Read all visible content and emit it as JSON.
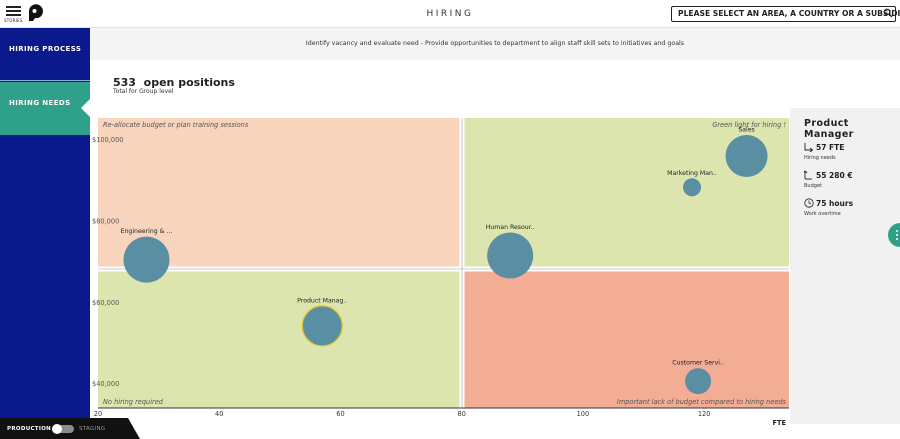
{
  "topbar": {
    "menu_label": "STORIES",
    "title": "HIRING",
    "search_placeholder": "PLEASE SELECT AN AREA, A COUNTRY OR A SUBSIDIARY",
    "icons": [
      "menu-icon",
      "logo-icon",
      "search-icon"
    ]
  },
  "sidebar": {
    "items": [
      {
        "label": "HIRING PROCESS",
        "active": false
      },
      {
        "label": "HIRING NEEDS",
        "active": true
      }
    ],
    "colors": {
      "bg": "#0a1a8c",
      "active": "#2fa089"
    }
  },
  "env": {
    "production_label": "PRODUCTION",
    "staging_label": "STAGING"
  },
  "description": "Identify vacancy and evaluate need - Provide opportunities to department to align staff skill sets to initiatives and goals",
  "summary": {
    "count": "533",
    "count_label": "open positions",
    "sublabel": "Total for Group level"
  },
  "chart_data": {
    "type": "scatter",
    "encoding": "bubble",
    "x_label": "FTE",
    "x_ticks": [
      "20",
      "40",
      "60",
      "80",
      "100",
      "120"
    ],
    "y_ticks": [
      "$100,000",
      "$80,000",
      "$60,000",
      "$40,000"
    ],
    "xlim": [
      20,
      134
    ],
    "ylim": [
      34000,
      107800
    ],
    "quadrants": [
      {
        "label": "Re-allocate budget or plan training sessions",
        "position": "top-left",
        "color": "#f9d4bd"
      },
      {
        "label": "Green light for hiring !",
        "position": "top-right",
        "color": "#dde5ae"
      },
      {
        "label": "No hiring required",
        "position": "bottom-left",
        "color": "#dde5ae"
      },
      {
        "label": "Important lack of budget compared to hiring needs",
        "position": "bottom-right",
        "color": "#f4ad95"
      }
    ],
    "points": [
      {
        "label": "Sales",
        "x": 127,
        "y": 96000,
        "size": 21,
        "selected": false
      },
      {
        "label": "Marketing Man..",
        "x": 118,
        "y": 88300,
        "size": 9,
        "selected": false
      },
      {
        "label": "Engineering & ...",
        "x": 28,
        "y": 70500,
        "size": 23,
        "selected": false
      },
      {
        "label": "Human Resour..",
        "x": 88,
        "y": 71500,
        "size": 23,
        "selected": false
      },
      {
        "label": "Product Manag..",
        "x": 57,
        "y": 54200,
        "size": 20,
        "selected": true
      },
      {
        "label": "Customer Servi..",
        "x": 119,
        "y": 40600,
        "size": 13,
        "selected": false
      }
    ],
    "bubble_color": "#5a8ea3",
    "selected_outline": "#e3c22f"
  },
  "panel": {
    "title": "Product Manager",
    "rows": [
      {
        "icon": "fte-arrow-icon",
        "value": "57 FTE",
        "label": "Hiring needs"
      },
      {
        "icon": "budget-arrow-icon",
        "value": "55 280 €",
        "label": "Budget"
      },
      {
        "icon": "clock-icon",
        "value": "75 hours",
        "label": "Work overtime"
      }
    ]
  }
}
